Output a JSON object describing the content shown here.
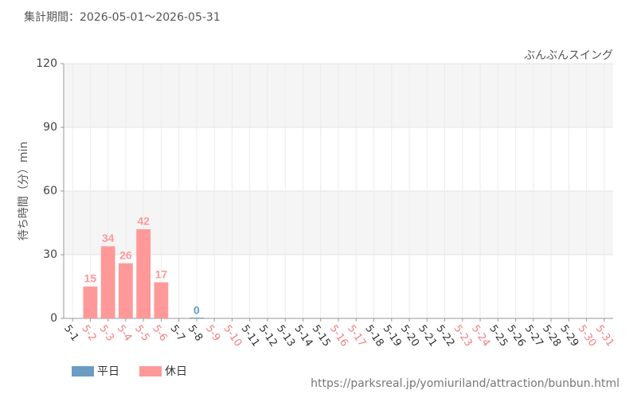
{
  "header": {
    "period": "集計期間：2026-05-01～2026-05-31"
  },
  "footer": {
    "url": "https://parksreal.jp/yomiuriland/attraction/bunbun.html"
  },
  "chart_data": {
    "type": "bar",
    "subtitle": "ぶんぶんスイング",
    "y_label": "待ち時間（分）min",
    "categories": [
      "5-1",
      "5-2",
      "5-3",
      "5-4",
      "5-5",
      "5-6",
      "5-7",
      "5-8",
      "5-9",
      "5-10",
      "5-11",
      "5-12",
      "5-13",
      "5-14",
      "5-15",
      "5-16",
      "5-17",
      "5-18",
      "5-19",
      "5-20",
      "5-21",
      "5-22",
      "5-23",
      "5-24",
      "5-25",
      "5-26",
      "5-27",
      "5-28",
      "5-29",
      "5-30",
      "5-31"
    ],
    "category_colors": [
      "#333333",
      "#f08080",
      "#f08080",
      "#f08080",
      "#f08080",
      "#f08080",
      "#333333",
      "#333333",
      "#f08080",
      "#f08080",
      "#333333",
      "#333333",
      "#333333",
      "#333333",
      "#333333",
      "#f08080",
      "#f08080",
      "#333333",
      "#333333",
      "#333333",
      "#333333",
      "#333333",
      "#f08080",
      "#f08080",
      "#333333",
      "#333333",
      "#333333",
      "#333333",
      "#333333",
      "#f08080",
      "#f08080"
    ],
    "series": [
      {
        "name": "平日",
        "color": "#6b9dc4",
        "values": [
          null,
          null,
          null,
          null,
          null,
          null,
          null,
          0,
          null,
          null,
          null,
          null,
          null,
          null,
          null,
          null,
          null,
          null,
          null,
          null,
          null,
          null,
          null,
          null,
          null,
          null,
          null,
          null,
          null,
          null,
          null
        ]
      },
      {
        "name": "休日",
        "color": "#ff9999",
        "values": [
          null,
          15,
          34,
          26,
          42,
          17,
          null,
          null,
          null,
          null,
          null,
          null,
          null,
          null,
          null,
          null,
          null,
          null,
          null,
          null,
          null,
          null,
          null,
          null,
          null,
          null,
          null,
          null,
          null,
          null,
          null
        ]
      }
    ],
    "ylim": [
      0,
      120
    ],
    "yticks": [
      0,
      30,
      60,
      90,
      120
    ],
    "grid": true
  }
}
